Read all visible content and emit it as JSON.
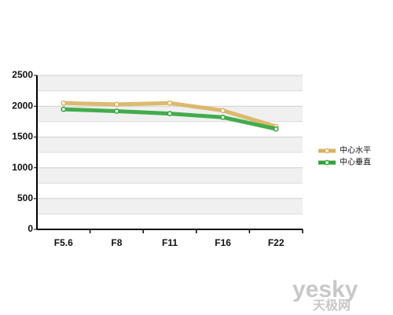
{
  "chart_data": {
    "type": "line",
    "categories": [
      "F5.6",
      "F8",
      "F11",
      "F16",
      "F22"
    ],
    "series": [
      {
        "name": "中心水平",
        "color": "#d8b25e",
        "values": [
          2050,
          2030,
          2050,
          1930,
          1670
        ]
      },
      {
        "name": "中心垂直",
        "color": "#2fa43a",
        "values": [
          1950,
          1920,
          1880,
          1820,
          1630
        ]
      }
    ],
    "ylim": [
      0,
      2500
    ],
    "yticks": [
      0,
      500,
      1000,
      1500,
      2000,
      2500
    ],
    "grid": true,
    "legend": "right"
  },
  "watermark": {
    "brand": "yesky",
    "sub": "天极网"
  }
}
